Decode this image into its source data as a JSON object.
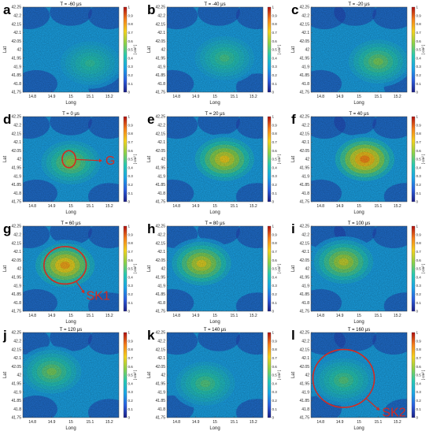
{
  "colors": {
    "annotation": "#d42a20",
    "colormap": [
      "#1c1f86",
      "#2b5fe0",
      "#1aa6e6",
      "#27c9b4",
      "#8bd24a",
      "#f4d21c",
      "#f7801a",
      "#b01010"
    ]
  },
  "axes": {
    "xlabel": "Long",
    "ylabel": "Lat",
    "x_ticks": [
      "14.8",
      "14.9",
      "15",
      "15.1",
      "15.2"
    ],
    "y_ticks": [
      "42.25",
      "42.2",
      "42.15",
      "42.1",
      "42.05",
      "42",
      "41.95",
      "41.9",
      "41.85",
      "41.8",
      "41.75"
    ],
    "colorbar_ticks": [
      "1",
      "0.9",
      "0.8",
      "0.7",
      "0.6",
      "0.5",
      "0.4",
      "0.3",
      "0.2",
      "0.1",
      "0"
    ],
    "colorbar_label": "[ cm² ]"
  },
  "panels": [
    {
      "letter": "a",
      "title": "T = -60 μs",
      "hotspot": {
        "x": 15.1,
        "y": 41.92,
        "level": 0.45
      }
    },
    {
      "letter": "b",
      "title": "T = -40 μs",
      "hotspot": {
        "x": 15.05,
        "y": 41.95,
        "level": 0.48
      }
    },
    {
      "letter": "c",
      "title": "T = -20 μs",
      "hotspot": {
        "x": 15.1,
        "y": 41.93,
        "level": 0.55
      }
    },
    {
      "letter": "d",
      "title": "T = 0 μs",
      "hotspot": {
        "x": 15.0,
        "y": 41.98,
        "level": 0.58
      }
    },
    {
      "letter": "e",
      "title": "T = 20 μs",
      "hotspot": {
        "x": 15.05,
        "y": 42.0,
        "level": 0.72
      }
    },
    {
      "letter": "f",
      "title": "T = 40 μs",
      "hotspot": {
        "x": 15.03,
        "y": 42.0,
        "level": 0.85
      }
    },
    {
      "letter": "g",
      "title": "T = 60 μs",
      "hotspot": {
        "x": 14.97,
        "y": 42.02,
        "level": 0.8
      }
    },
    {
      "letter": "h",
      "title": "T = 80 μs",
      "hotspot": {
        "x": 14.93,
        "y": 42.03,
        "level": 0.7
      }
    },
    {
      "letter": "i",
      "title": "T = 100 μs",
      "hotspot": {
        "x": 14.92,
        "y": 42.04,
        "level": 0.66
      }
    },
    {
      "letter": "j",
      "title": "T = 120 μs",
      "hotspot": {
        "x": 14.9,
        "y": 42.02,
        "level": 0.55
      }
    },
    {
      "letter": "k",
      "title": "T = 140 μs",
      "hotspot": {
        "x": 14.95,
        "y": 41.95,
        "level": 0.5
      }
    },
    {
      "letter": "l",
      "title": "T = 160 μs",
      "hotspot": {
        "x": 14.92,
        "y": 41.97,
        "level": 0.5
      }
    }
  ],
  "annotations": [
    {
      "panel": "d",
      "label": "G",
      "ellipse": {
        "x": 14.99,
        "y": 42.0,
        "rx_deg": 0.035,
        "ry_deg": 0.05
      },
      "label_pos": {
        "x": 15.18,
        "y": 41.99
      }
    },
    {
      "panel": "g",
      "label": "SK1",
      "ellipse": {
        "x": 14.97,
        "y": 42.02,
        "rx_deg": 0.11,
        "ry_deg": 0.11
      },
      "label_pos": {
        "x": 15.08,
        "y": 41.84
      }
    },
    {
      "panel": "l",
      "label": "SK2",
      "ellipse": {
        "x": 14.92,
        "y": 41.98,
        "rx_deg": 0.16,
        "ry_deg": 0.17
      },
      "label_pos": {
        "x": 15.12,
        "y": 41.78
      }
    }
  ]
}
